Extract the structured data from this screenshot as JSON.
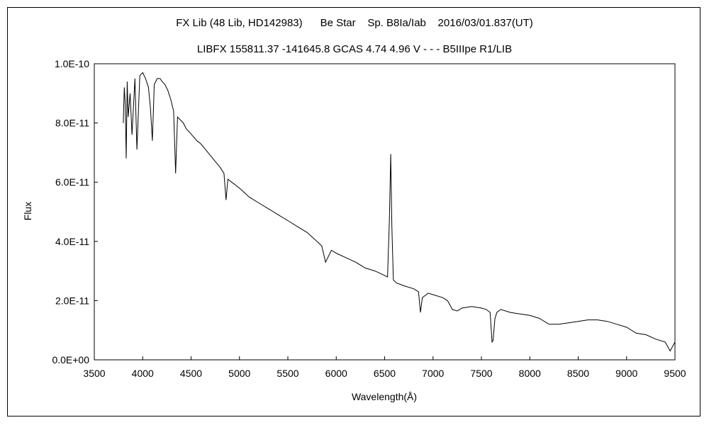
{
  "chart_data": {
    "type": "line",
    "title": "FX Lib (48 Lib, HD142983)      Be Star    Sp. B8Ia/Iab    2016/03/01.837(UT)",
    "subtitle": "LIBFX 155811.37 -141645.8 GCAS 4.74 4.96 V - - - B5IIIpe R1/LIB",
    "xlabel": "Wavelength(Å)",
    "ylabel": "Flux",
    "xlim": [
      3500,
      9500
    ],
    "ylim": [
      0,
      1e-10
    ],
    "x_ticks": [
      3500,
      4000,
      4500,
      5000,
      5500,
      6000,
      6500,
      7000,
      7500,
      8000,
      8500,
      9000,
      9500
    ],
    "x_tick_labels": [
      "3500",
      "4000",
      "4500",
      "5000",
      "5500",
      "6000",
      "6500",
      "7000",
      "7500",
      "8000",
      "8500",
      "9000",
      "9500"
    ],
    "y_ticks": [
      0,
      2e-11,
      4e-11,
      6e-11,
      8e-11,
      1e-10
    ],
    "y_tick_labels": [
      "0.0E+00",
      "2.0E-11",
      "4.0E-11",
      "6.0E-11",
      "8.0E-11",
      "1.0E-10"
    ],
    "grid": false,
    "legend": "none",
    "series": [
      {
        "color": "#000000",
        "x": [
          3800,
          3810,
          3820,
          3830,
          3840,
          3850,
          3870,
          3890,
          3920,
          3940,
          3970,
          4000,
          4030,
          4060,
          4080,
          4100,
          4120,
          4150,
          4180,
          4200,
          4230,
          4260,
          4290,
          4320,
          4340,
          4360,
          4390,
          4420,
          4450,
          4480,
          4520,
          4560,
          4600,
          4650,
          4700,
          4750,
          4800,
          4840,
          4861,
          4880,
          4920,
          4960,
          5000,
          5100,
          5200,
          5300,
          5400,
          5500,
          5600,
          5700,
          5800,
          5850,
          5890,
          5950,
          6000,
          6100,
          6200,
          6300,
          6400,
          6500,
          6530,
          6550,
          6563,
          6575,
          6590,
          6620,
          6700,
          6800,
          6850,
          6870,
          6890,
          6950,
          7000,
          7100,
          7150,
          7200,
          7250,
          7300,
          7400,
          7500,
          7550,
          7590,
          7610,
          7620,
          7640,
          7660,
          7700,
          7800,
          7900,
          8000,
          8100,
          8200,
          8300,
          8400,
          8500,
          8600,
          8700,
          8800,
          8900,
          9000,
          9100,
          9200,
          9300,
          9400,
          9450,
          9500
        ],
        "y": [
          8e-11,
          9.2e-11,
          8.6e-11,
          6.8e-11,
          9.4e-11,
          8.2e-11,
          9e-11,
          7.6e-11,
          9.5e-11,
          7.1e-11,
          9.6e-11,
          9.7e-11,
          9.5e-11,
          9.2e-11,
          8.5e-11,
          7.4e-11,
          9.3e-11,
          9.5e-11,
          9.5e-11,
          9.4e-11,
          9.3e-11,
          9.1e-11,
          8.8e-11,
          8.4e-11,
          6.3e-11,
          8.2e-11,
          8.1e-11,
          8e-11,
          7.8e-11,
          7.7e-11,
          7.55e-11,
          7.4e-11,
          7.3e-11,
          7.1e-11,
          6.9e-11,
          6.7e-11,
          6.5e-11,
          6.3e-11,
          5.4e-11,
          6.1e-11,
          6e-11,
          5.9e-11,
          5.8e-11,
          5.5e-11,
          5.3e-11,
          5.1e-11,
          4.9e-11,
          4.7e-11,
          4.5e-11,
          4.3e-11,
          4e-11,
          3.85e-11,
          3.3e-11,
          3.7e-11,
          3.6e-11,
          3.45e-11,
          3.3e-11,
          3.1e-11,
          3e-11,
          2.85e-11,
          2.8e-11,
          4.8e-11,
          6.95e-11,
          4.5e-11,
          2.7e-11,
          2.6e-11,
          2.5e-11,
          2.4e-11,
          2.3e-11,
          1.6e-11,
          2.1e-11,
          2.25e-11,
          2.2e-11,
          2.1e-11,
          2e-11,
          1.7e-11,
          1.65e-11,
          1.75e-11,
          1.8e-11,
          1.75e-11,
          1.7e-11,
          1.6e-11,
          6e-12,
          6.5e-12,
          1.4e-11,
          1.6e-11,
          1.7e-11,
          1.6e-11,
          1.55e-11,
          1.5e-11,
          1.4e-11,
          1.2e-11,
          1.2e-11,
          1.25e-11,
          1.3e-11,
          1.35e-11,
          1.35e-11,
          1.3e-11,
          1.2e-11,
          1.1e-11,
          9e-12,
          8.5e-12,
          7e-12,
          6e-12,
          3e-12,
          6e-12
        ]
      }
    ]
  }
}
